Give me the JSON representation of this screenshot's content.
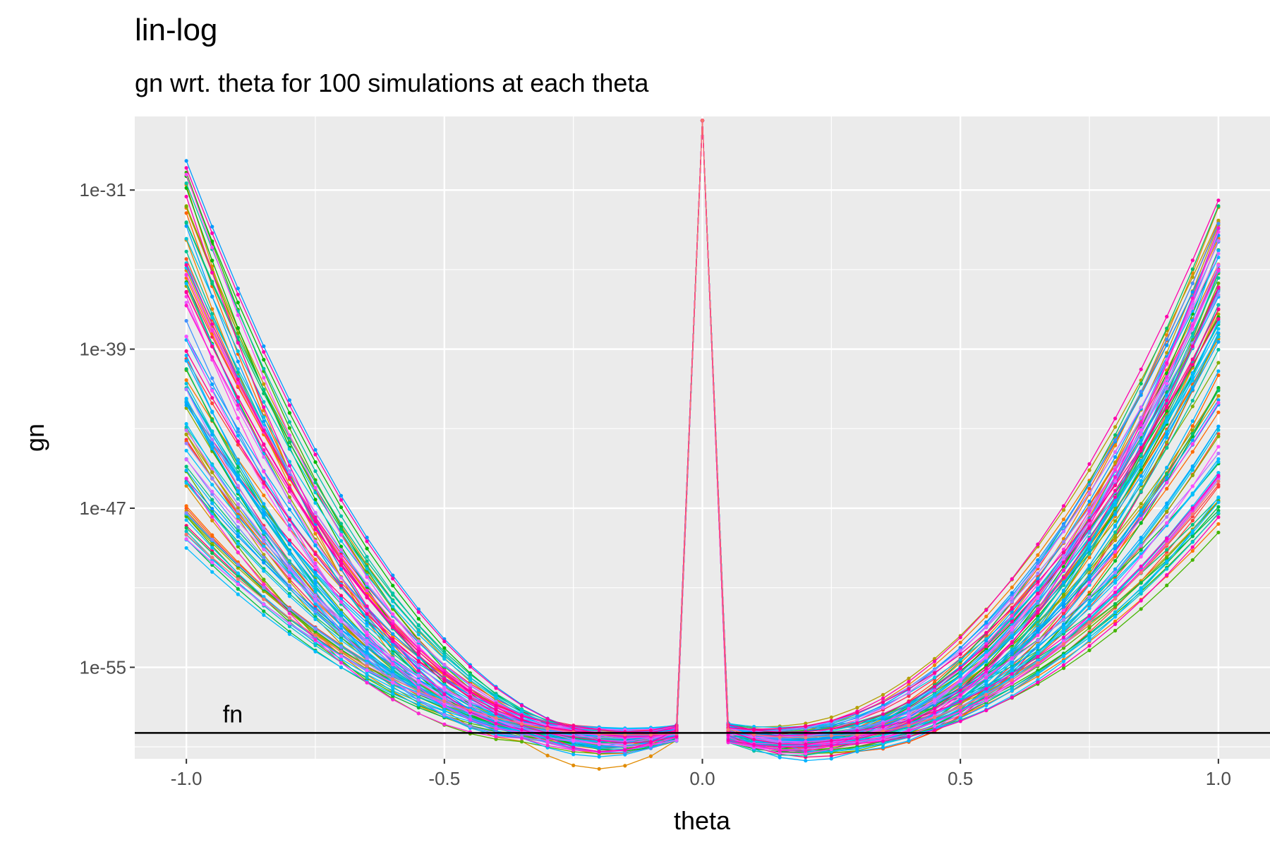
{
  "chart_data": {
    "type": "line",
    "title": "lin-log",
    "subtitle": "gn wrt. theta for 100 simulations at each theta",
    "xlabel": "theta",
    "ylabel": "gn",
    "x_ticks": [
      -1.0,
      -0.5,
      0.0,
      0.5,
      1.0
    ],
    "x_tick_labels": [
      "-1.0",
      "-0.5",
      "0.0",
      "0.5",
      "1.0"
    ],
    "xlim": [
      -1.1,
      1.1
    ],
    "y_scale": "log10",
    "y_ticks_log10": [
      -31,
      -39,
      -47,
      -55
    ],
    "y_tick_labels": [
      "1e-31",
      "1e-39",
      "1e-47",
      "1e-55"
    ],
    "ylim_log10": [
      -59.6,
      -27.3
    ],
    "grid": true,
    "legend": "none",
    "n_series": 100,
    "x": [
      -1.0,
      -0.95,
      -0.9,
      -0.85,
      -0.8,
      -0.75,
      -0.7,
      -0.65,
      -0.6,
      -0.55,
      -0.5,
      -0.45,
      -0.4,
      -0.35,
      -0.3,
      -0.25,
      -0.2,
      -0.15,
      -0.1,
      -0.05,
      0.0,
      0.05,
      0.1,
      0.15,
      0.2,
      0.25,
      0.3,
      0.35,
      0.4,
      0.45,
      0.5,
      0.55,
      0.6,
      0.65,
      0.7,
      0.75,
      0.8,
      0.85,
      0.9,
      0.95,
      1.0
    ],
    "series_envelope": {
      "spike_at_zero_log10": -27.5,
      "max_log10_at_minus1": -29.3,
      "min_log10_at_minus1": -49.2,
      "max_log10_at_plus1": -31.3,
      "min_log10_at_plus1": -48.3,
      "min_log10_near_minus0_2": -58.6,
      "min_log10_near_plus0_25": -59.3,
      "log10_at_pm0_05": -58.3
    },
    "reference_line": {
      "label": "fn",
      "y_log10": -58.3
    },
    "colors": {
      "panel_background": "#ebebeb",
      "grid": "#ffffff",
      "reference_line": "#000000",
      "spike_series": "#f8766d"
    }
  }
}
